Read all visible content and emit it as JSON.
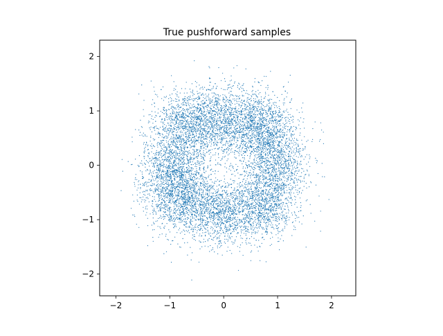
{
  "chart_data": {
    "type": "scatter",
    "title": "True pushforward samples",
    "xlabel": "",
    "ylabel": "",
    "xlim": [
      -2.3,
      2.45
    ],
    "ylim": [
      -2.4,
      2.3
    ],
    "xticks": [
      -2,
      -1,
      0,
      1,
      2
    ],
    "yticks": [
      -2,
      -1,
      0,
      1,
      2
    ],
    "xtick_labels": [
      "−2",
      "−1",
      "0",
      "1",
      "2"
    ],
    "ytick_labels": [
      "−2",
      "−1",
      "0",
      "1",
      "2"
    ],
    "grid": false,
    "legend": "none",
    "marker_color": "#1f77b4",
    "point_count": 9000,
    "distribution": {
      "description_components": [
        {
          "cx": -0.05,
          "cy": 0.85,
          "sx": 0.35,
          "sy": 0.32,
          "weight": 1
        },
        {
          "cx": 0.65,
          "cy": 0.75,
          "sx": 0.32,
          "sy": 0.32,
          "weight": 1
        },
        {
          "cx": 0.95,
          "cy": 0.1,
          "sx": 0.3,
          "sy": 0.35,
          "weight": 1
        },
        {
          "cx": 0.75,
          "cy": -0.7,
          "sx": 0.32,
          "sy": 0.32,
          "weight": 1
        },
        {
          "cx": -0.05,
          "cy": -0.85,
          "sx": 0.35,
          "sy": 0.3,
          "weight": 1
        },
        {
          "cx": -0.75,
          "cy": -0.65,
          "sx": 0.32,
          "sy": 0.32,
          "weight": 1
        },
        {
          "cx": -0.95,
          "cy": -0.1,
          "sx": 0.3,
          "sy": 0.35,
          "weight": 1
        },
        {
          "cx": -0.7,
          "cy": 0.7,
          "sx": 0.32,
          "sy": 0.32,
          "weight": 1
        }
      ]
    }
  }
}
